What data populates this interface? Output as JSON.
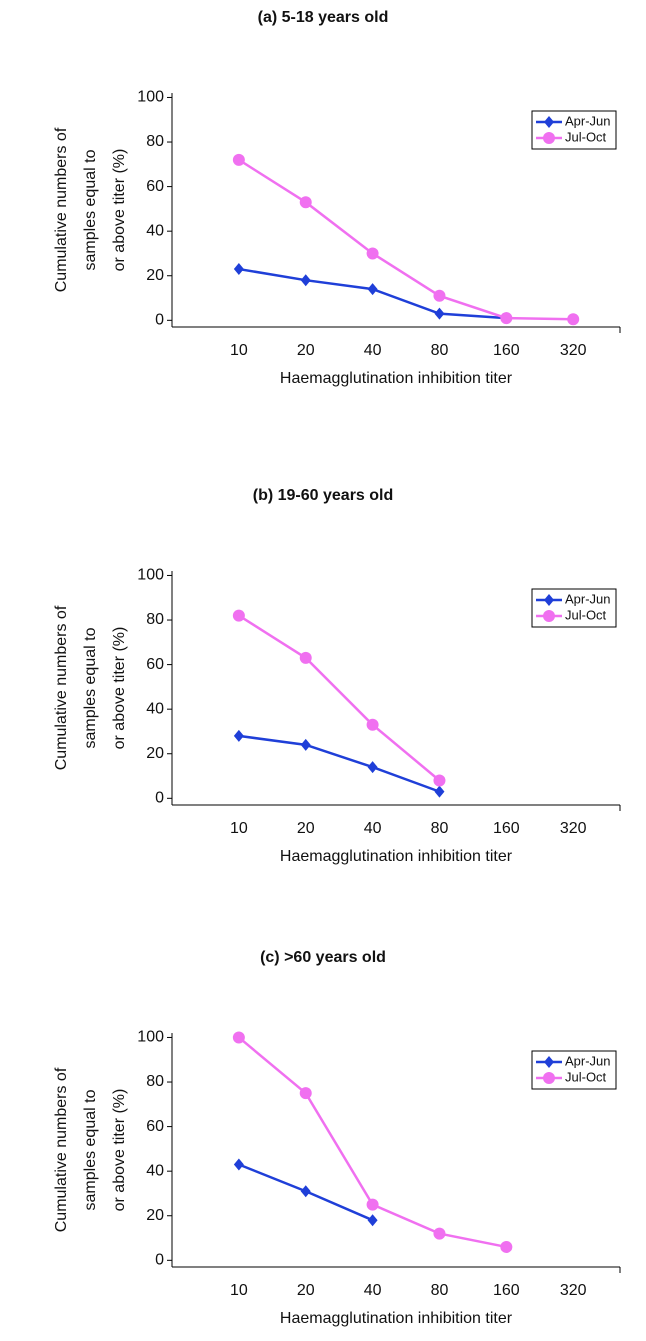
{
  "chart_data": [
    {
      "type": "line",
      "title": "(a) 5-18 years old",
      "categories": [
        "10",
        "20",
        "40",
        "80",
        "160",
        "320"
      ],
      "series": [
        {
          "name": "Apr-Jun",
          "color": "#1f3fd8",
          "marker": "diamond",
          "values": [
            23,
            18,
            14,
            3,
            1,
            null
          ]
        },
        {
          "name": "Jul-Oct",
          "color": "#f070f0",
          "marker": "circle",
          "values": [
            72,
            53,
            30,
            11,
            1,
            0.5
          ]
        }
      ],
      "ylim": [
        -3,
        102
      ],
      "yticks": [
        0,
        20,
        40,
        60,
        80,
        100
      ],
      "xlabel": "Haemagglutination inhibition titer",
      "ylabel": [
        "Cumulative numbers of",
        "samples equal to",
        "or above titer (%)"
      ],
      "legend": "upper right"
    },
    {
      "type": "line",
      "title": "(b) 19-60 years old",
      "categories": [
        "10",
        "20",
        "40",
        "80",
        "160",
        "320"
      ],
      "series": [
        {
          "name": "Apr-Jun",
          "color": "#1f3fd8",
          "marker": "diamond",
          "values": [
            28,
            24,
            14,
            3,
            null,
            null
          ]
        },
        {
          "name": "Jul-Oct",
          "color": "#f070f0",
          "marker": "circle",
          "values": [
            82,
            63,
            33,
            8,
            null,
            null
          ]
        }
      ],
      "ylim": [
        -3,
        102
      ],
      "yticks": [
        0,
        20,
        40,
        60,
        80,
        100
      ],
      "xlabel": "Haemagglutination inhibition titer",
      "ylabel": [
        "Cumulative numbers of",
        "samples equal to",
        "or above titer (%)"
      ],
      "legend": "upper right"
    },
    {
      "type": "line",
      "title": "(c) >60 years old",
      "categories": [
        "10",
        "20",
        "40",
        "80",
        "160",
        "320"
      ],
      "series": [
        {
          "name": "Apr-Jun",
          "color": "#1f3fd8",
          "marker": "diamond",
          "values": [
            43,
            31,
            18,
            null,
            null,
            null
          ]
        },
        {
          "name": "Jul-Oct",
          "color": "#f070f0",
          "marker": "circle",
          "values": [
            100,
            75,
            25,
            12,
            6,
            null
          ]
        }
      ],
      "ylim": [
        -3,
        102
      ],
      "yticks": [
        0,
        20,
        40,
        60,
        80,
        100
      ],
      "xlabel": "Haemagglutination inhibition titer",
      "ylabel": [
        "Cumulative numbers of",
        "samples equal to",
        "or above titer (%)"
      ],
      "legend": "upper right"
    }
  ]
}
